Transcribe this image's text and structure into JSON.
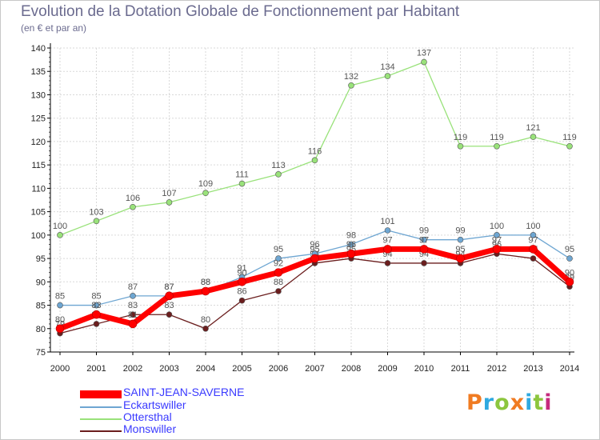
{
  "title": "Evolution de la Dotation Globale de Fonctionnement par Habitant",
  "subtitle": "(en € et par an)",
  "brand": "Proxiti",
  "brand_colors": [
    "#f07b22",
    "#2fa9e0",
    "#8cc63e",
    "#f07b22",
    "#2fa9e0",
    "#8cc63e",
    "#c62a7d"
  ],
  "chart_data": {
    "type": "line",
    "title": "Evolution de la Dotation Globale de Fonctionnement par Habitant",
    "subtitle": "(en € et par an)",
    "xlabel": "",
    "ylabel": "",
    "x": [
      "2000",
      "2001",
      "2002",
      "2003",
      "2004",
      "2005",
      "2006",
      "2007",
      "2008",
      "2009",
      "2010",
      "2011",
      "2012",
      "2013",
      "2014"
    ],
    "ylim": [
      75,
      140
    ],
    "yticks": [
      75,
      80,
      85,
      90,
      95,
      100,
      105,
      110,
      115,
      120,
      125,
      130,
      135,
      140
    ],
    "grid": true,
    "legend_position": "bottom-left",
    "series": [
      {
        "name": "Monswiller",
        "color": "#6b1e1e",
        "values": [
          79,
          81,
          83,
          83,
          80,
          86,
          88,
          94,
          95,
          94,
          94,
          94,
          96,
          95,
          89
        ]
      },
      {
        "name": "Ottersthal",
        "color": "#99e27a",
        "values": [
          100,
          103,
          106,
          107,
          109,
          111,
          113,
          116,
          132,
          134,
          137,
          119,
          119,
          121,
          119
        ]
      },
      {
        "name": "Eckartswiller",
        "color": "#6ea6d2",
        "values": [
          85,
          85,
          87,
          87,
          88,
          91,
          95,
          96,
          98,
          101,
          99,
          99,
          100,
          100,
          95
        ]
      },
      {
        "name": "SAINT-JEAN-SAVERNE",
        "color": "#ff0000",
        "values": [
          80,
          83,
          81,
          87,
          88,
          90,
          92,
          95,
          96,
          97,
          97,
          95,
          97,
          97,
          90
        ]
      }
    ],
    "legend": [
      "SAINT-JEAN-SAVERNE",
      "Eckartswiller",
      "Ottersthal",
      "Monswiller"
    ]
  }
}
